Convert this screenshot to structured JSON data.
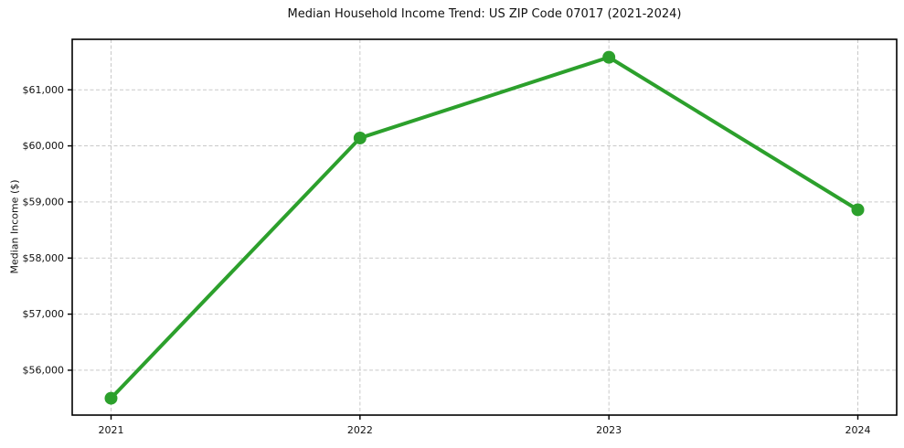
{
  "chart_data": {
    "type": "line",
    "title": "Median Household Income Trend: US ZIP Code 07017 (2021-2024)",
    "xlabel": "",
    "ylabel": "Median Income ($)",
    "categories": [
      "2021",
      "2022",
      "2023",
      "2024"
    ],
    "values": [
      55500,
      60140,
      61580,
      58860
    ],
    "yticks": [
      56000,
      57000,
      58000,
      59000,
      60000,
      61000
    ],
    "ytick_labels": [
      "$56,000",
      "$57,000",
      "$58,000",
      "$59,000",
      "$60,000",
      "$61,000"
    ],
    "ylim": [
      55200,
      61900
    ],
    "grid": true,
    "grid_linestyle": "dashed",
    "legend_position": "none",
    "colors": {
      "line": "#2ca02c",
      "marker": "#2ca02c",
      "grid": "#c9c9c9",
      "spine": "#000000",
      "text": "#111111",
      "background": "#ffffff"
    }
  }
}
